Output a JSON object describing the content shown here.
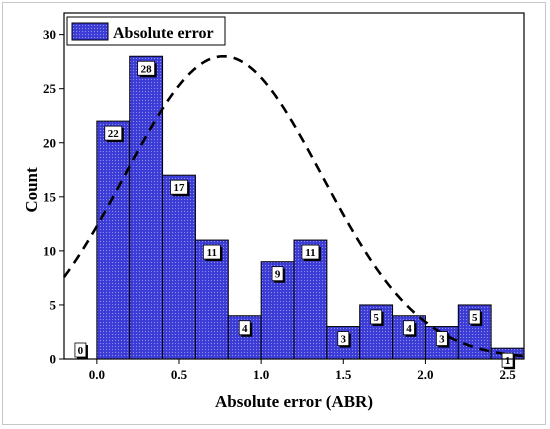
{
  "chart_data": {
    "type": "bar",
    "title": "",
    "xlabel": "Absolute error (ABR)",
    "ylabel": "Count",
    "legend": {
      "label": "Absolute error",
      "position": "top-left"
    },
    "bar_color": "#3b3bd6",
    "bar_edge_color": "#000000",
    "bin_width": 0.2,
    "bin_starts": [
      -0.2,
      0.0,
      0.2,
      0.4,
      0.6,
      0.8,
      1.0,
      1.2,
      1.4,
      1.6,
      1.8,
      2.0,
      2.2,
      2.4
    ],
    "values": [
      0,
      22,
      28,
      17,
      11,
      4,
      9,
      11,
      3,
      5,
      4,
      3,
      5,
      1
    ],
    "data_labels": [
      "0",
      "22",
      "28",
      "17",
      "11",
      "4",
      "9",
      "11",
      "3",
      "5",
      "4",
      "3",
      "5",
      "1"
    ],
    "xlim": [
      -0.2,
      2.6
    ],
    "ylim": [
      0,
      32
    ],
    "x_ticks": [
      0.0,
      0.5,
      1.0,
      1.5,
      2.0,
      2.5
    ],
    "x_tick_labels": [
      "0.0",
      "0.5",
      "1.0",
      "1.5",
      "2.0",
      "2.5"
    ],
    "y_ticks": [
      0,
      5,
      10,
      15,
      20,
      25,
      30
    ],
    "y_tick_labels": [
      "0",
      "5",
      "10",
      "15",
      "20",
      "25",
      "30"
    ],
    "fit_curve": {
      "type": "normal",
      "style": "dashed",
      "peak_x": 0.77,
      "peak_y": 28,
      "sigma": 0.6
    },
    "grid": false
  }
}
